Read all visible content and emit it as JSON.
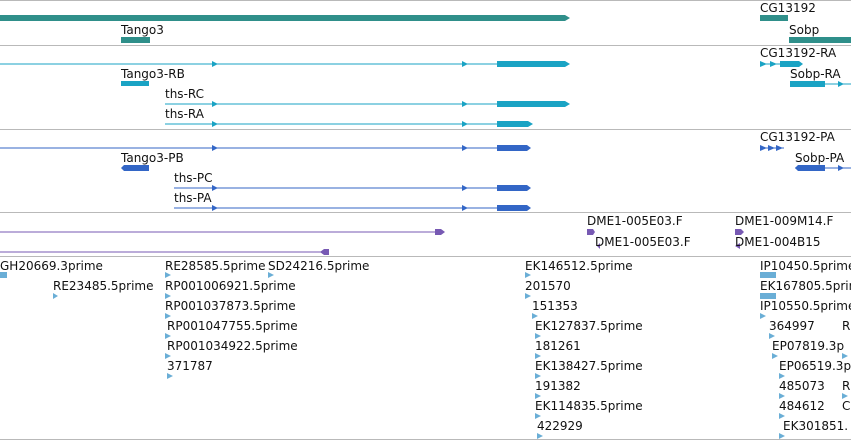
{
  "colors": {
    "gene": "#2f8f8a",
    "transcript": "#1aa3c4",
    "protein": "#3366c6",
    "clone": "#7759b3",
    "est": "#6aaed6",
    "divider": "#b9b9b9"
  },
  "tracks": {
    "genes": {
      "labels": [
        "Tango3",
        "CG13192",
        "Sobp"
      ]
    },
    "transcripts": {
      "labels": [
        "Tango3-RB",
        "ths-RC",
        "ths-RA",
        "CG13192-RA",
        "Sobp-RA"
      ]
    },
    "proteins": {
      "labels": [
        "Tango3-PB",
        "ths-PC",
        "ths-PA",
        "CG13192-PA",
        "Sobp-PA"
      ]
    },
    "clones": {
      "labels": [
        "DME1-005E03.F",
        "DME1-005E03.F",
        "DME1-009M14.F",
        "DME1-004B15"
      ]
    },
    "ests": {
      "labels": [
        "GH20669.3prime",
        "RE23485.5prime",
        "RE28585.5prime",
        "SD24216.5prime",
        "RP001006921.5prime",
        "RP001037873.5prime",
        "RP001047755.5prime",
        "RP001034922.5prime",
        "371787",
        "EK146512.5prime",
        "201570",
        "151353",
        "EK127837.5prime",
        "181261",
        "EK138427.5prime",
        "191382",
        "EK114835.5prime",
        "422929",
        "IP10450.5prime",
        "EK167805.5prime",
        "IP10550.5prime",
        "364997",
        "EP07819.3p",
        "EP06519.3p",
        "485073",
        "484612",
        "EK301851.",
        "R",
        "R",
        "C"
      ]
    }
  }
}
